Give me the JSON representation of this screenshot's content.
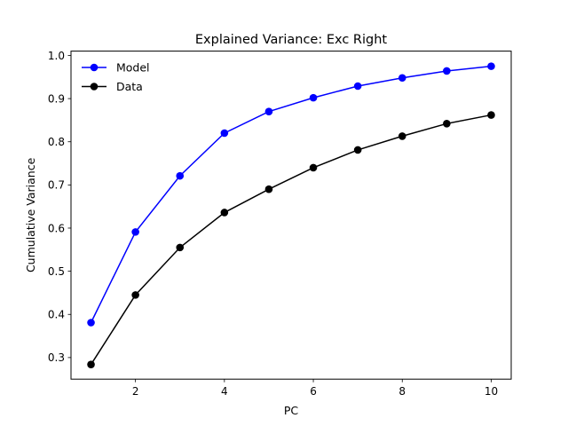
{
  "chart_data": {
    "type": "line",
    "title": "Explained Variance: Exc Right",
    "xlabel": "PC",
    "ylabel": "Cumulative Variance",
    "xlim": [
      0.55,
      10.45
    ],
    "ylim": [
      0.25,
      1.01
    ],
    "xticks": [
      2,
      4,
      6,
      8,
      10
    ],
    "yticks": [
      0.3,
      0.4,
      0.5,
      0.6,
      0.7,
      0.8,
      0.9,
      1.0
    ],
    "ytick_labels": [
      "0.3",
      "0.4",
      "0.5",
      "0.6",
      "0.7",
      "0.8",
      "0.9",
      "1.0"
    ],
    "grid": false,
    "legend_position": "top-left",
    "x": [
      1,
      2,
      3,
      4,
      5,
      6,
      7,
      8,
      9,
      10
    ],
    "series": [
      {
        "name": "Model",
        "color": "#0000ff",
        "values": [
          0.381,
          0.591,
          0.721,
          0.82,
          0.87,
          0.902,
          0.929,
          0.948,
          0.964,
          0.975
        ]
      },
      {
        "name": "Data",
        "color": "#000000",
        "values": [
          0.284,
          0.445,
          0.555,
          0.636,
          0.69,
          0.74,
          0.781,
          0.813,
          0.842,
          0.862
        ]
      }
    ]
  }
}
